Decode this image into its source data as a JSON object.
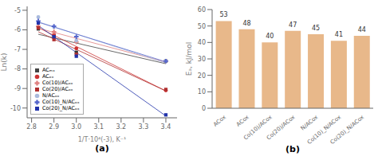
{
  "chart_data": [
    {
      "type": "scatter",
      "annotation": "(a)",
      "xlabel": "1/T·10⁴(-3), K⁻¹",
      "ylabel": "Ln(k)",
      "x": [
        2.83,
        2.9,
        3.0,
        3.4
      ],
      "xlim": [
        2.78,
        3.45
      ],
      "ylim": [
        -10.5,
        -4.8
      ],
      "xticks": [
        2.8,
        2.9,
        {
          "value": 3.0,
          "label": "3.0"
        },
        3.1,
        3.2,
        3.3,
        3.4
      ],
      "yticks": [
        -10,
        -9,
        -8,
        -7,
        -6,
        -5
      ],
      "grid": false,
      "legend": "lower left",
      "series": [
        {
          "name": "ACₘₓ",
          "color": "#444444",
          "marker_color": "#333333",
          "marker": "square",
          "line_style": "solid",
          "values": [
            -5.95,
            -6.35,
            -7.15,
            -7.6
          ],
          "fit_values": [
            -6.2275,
            -7.7335
          ]
        },
        {
          "name": "ACₒₓ",
          "color": "#cc3333",
          "marker_color": "#cc3333",
          "marker": "circle",
          "line_style": "solid",
          "values": [
            -5.85,
            -6.25,
            -6.95,
            -9.1
          ],
          "fit_values": [
            -5.8874,
            -9.1247
          ]
        },
        {
          "name": "Co(10)/ACₒₓ",
          "color": "#e08080",
          "marker_color": "#e08080",
          "marker": "plus",
          "line_style": "solid",
          "values": [
            -5.82,
            -6.1,
            -6.62,
            -7.6
          ],
          "fit_values": [
            -5.9202,
            -7.6508
          ]
        },
        {
          "name": "Co(20)/ACₒₓ",
          "color": "#b03030",
          "marker_color": "#b03030",
          "marker": "square",
          "line_style": "solid",
          "values": [
            -5.9,
            -6.5,
            -7.25,
            -9.05
          ],
          "fit_values": [
            -6.0992,
            -9.1274
          ]
        },
        {
          "name": "N/ACₒₓ",
          "color": "#aabbdd",
          "marker_color": "#aabbdd",
          "marker": "circle",
          "line_style": "solid",
          "values": [
            -5.35,
            -5.85,
            -6.55,
            -7.6
          ],
          "fit_values": [
            -5.5869,
            -7.6998
          ]
        },
        {
          "name": "Co(10)_N/ACₒₓ",
          "color": "#5566cc",
          "marker_color": "#5566cc",
          "marker": "plus",
          "line_style": "solid",
          "values": [
            -5.55,
            -5.82,
            -6.35,
            -7.6
          ],
          "fit_values": [
            -5.6106,
            -7.6356
          ]
        },
        {
          "name": "Co(20)_N/ACₒₓ",
          "color": "#2233aa",
          "marker_color": "#2233aa",
          "marker": "square",
          "line_style": "solid",
          "values": [
            -5.65,
            -6.35,
            -7.35,
            -10.35
          ],
          "fit_values": [
            -5.7823,
            -10.4063
          ]
        }
      ]
    },
    {
      "type": "bar",
      "annotation": "(b)",
      "ylabel": "Eₐ, kJ/mol",
      "categories": [
        "ACox",
        "ACox",
        "Co(10)/ACox",
        "Co(20)/ACox",
        "N/ACox",
        "Co(10)_N/ACox",
        "Co(20)_N/ACox"
      ],
      "values": [
        53,
        48,
        40,
        47,
        45,
        41,
        44
      ],
      "color": "#e8b88a",
      "ylim": [
        0,
        60
      ],
      "yticks": [
        0,
        10,
        20,
        30,
        40,
        50,
        60
      ],
      "grid": false,
      "data_labels": true
    }
  ]
}
